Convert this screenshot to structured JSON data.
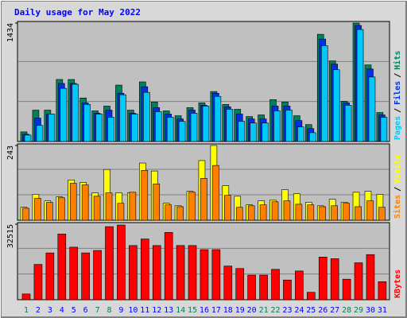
{
  "chart_data": [
    {
      "type": "bar",
      "title": "Daily usage for May 2022",
      "ylim": [
        0,
        1434
      ],
      "yticks": [
        1434
      ],
      "legend_separator": "/",
      "series": [
        {
          "name": "Pages",
          "color": "#00c8f8",
          "values": [
            78,
            195,
            332,
            644,
            693,
            449,
            332,
            293,
            566,
            332,
            595,
            361,
            293,
            244,
            342,
            429,
            546,
            390,
            244,
            224,
            224,
            371,
            380,
            176,
            107,
            1161,
            869,
            439,
            1356,
            781,
            293
          ]
        },
        {
          "name": "Files",
          "color": "#0030e0",
          "values": [
            88,
            283,
            332,
            703,
            703,
            468,
            342,
            380,
            585,
            342,
            663,
            410,
            332,
            273,
            380,
            439,
            585,
            420,
            332,
            273,
            273,
            429,
            429,
            254,
            156,
            1240,
            937,
            468,
            1405,
            878,
            322
          ]
        },
        {
          "name": "Hits",
          "color": "#008060",
          "values": [
            117,
            380,
            380,
            751,
            751,
            527,
            371,
            429,
            683,
            380,
            722,
            478,
            371,
            312,
            410,
            468,
            605,
            449,
            390,
            302,
            322,
            507,
            478,
            312,
            205,
            1298,
            976,
            488,
            1434,
            927,
            351
          ]
        }
      ]
    },
    {
      "type": "bar",
      "ylim": [
        0,
        243
      ],
      "yticks": [
        243
      ],
      "legend_separator": "/",
      "series": [
        {
          "name": "Sites",
          "color": "#ff8000",
          "values": [
            39,
            71,
            58,
            73,
            120,
            115,
            78,
            89,
            55,
            91,
            162,
            118,
            50,
            44,
            91,
            136,
            178,
            81,
            42,
            47,
            50,
            60,
            63,
            52,
            50,
            44,
            47,
            55,
            44,
            63,
            42
          ]
        },
        {
          "name": "Visits",
          "color": "#ffff00",
          "values": [
            42,
            84,
            63,
            76,
            131,
            123,
            89,
            165,
            89,
            89,
            186,
            160,
            55,
            47,
            94,
            194,
            243,
            112,
            78,
            50,
            63,
            65,
            99,
            86,
            58,
            47,
            68,
            58,
            91,
            94,
            84
          ]
        }
      ]
    },
    {
      "type": "bar",
      "ylim": [
        0,
        32515
      ],
      "yticks": [
        32515
      ],
      "legend_separator": "/",
      "categories": [
        "1",
        "2",
        "3",
        "4",
        "5",
        "6",
        "7",
        "8",
        "9",
        "10",
        "11",
        "12",
        "13",
        "14",
        "15",
        "16",
        "17",
        "18",
        "19",
        "20",
        "21",
        "22",
        "23",
        "24",
        "25",
        "26",
        "27",
        "28",
        "29",
        "30",
        "31"
      ],
      "category_colors": [
        "#008060",
        "#0000ff",
        "#0000ff",
        "#0000ff",
        "#0000ff",
        "#0000ff",
        "#008060",
        "#008060",
        "#0000ff",
        "#0000ff",
        "#0000ff",
        "#0000ff",
        "#0000ff",
        "#008060",
        "#008060",
        "#0000ff",
        "#0000ff",
        "#0000ff",
        "#0000ff",
        "#0000ff",
        "#008060",
        "#008060",
        "#0000ff",
        "#0000ff",
        "#0000ff",
        "#0000ff",
        "#0000ff",
        "#008060",
        "#008060",
        "#0000ff",
        "#0000ff"
      ],
      "series": [
        {
          "name": "KBytes",
          "color": "#ff0000",
          "values": [
            2474,
            15197,
            20145,
            28273,
            22619,
            20145,
            21205,
            31454,
            32161,
            23326,
            26153,
            23326,
            28980,
            23326,
            23326,
            21558,
            21558,
            14490,
            13430,
            10603,
            10603,
            13077,
            8481,
            12370,
            3181,
            18378,
            17671,
            8835,
            15904,
            19438,
            7774
          ]
        }
      ]
    }
  ]
}
